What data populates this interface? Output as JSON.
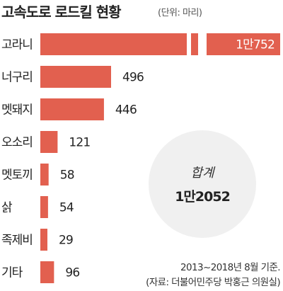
{
  "chart_data": {
    "type": "bar",
    "orientation": "horizontal",
    "title": "고속도로 로드킬 현황",
    "unit": "(단위: 마리)",
    "categories": [
      "고라니",
      "너구리",
      "멧돼지",
      "오소리",
      "멧토끼",
      "삵",
      "족제비",
      "기타"
    ],
    "values": [
      10752,
      496,
      446,
      121,
      58,
      54,
      29,
      96
    ],
    "value_labels": [
      "1만752",
      "496",
      "446",
      "121",
      "58",
      "54",
      "29",
      "96"
    ],
    "broken_axis": true,
    "total": {
      "title": "합계",
      "value": "1만2052"
    },
    "footnote": [
      "2013~2018년 8월 기준.",
      "(자료: 더불어민주당 박홍근 의원실)"
    ],
    "grid": false,
    "legend": "none",
    "bar_color": "#e2604f",
    "circle_color": "#f0f0f0"
  }
}
